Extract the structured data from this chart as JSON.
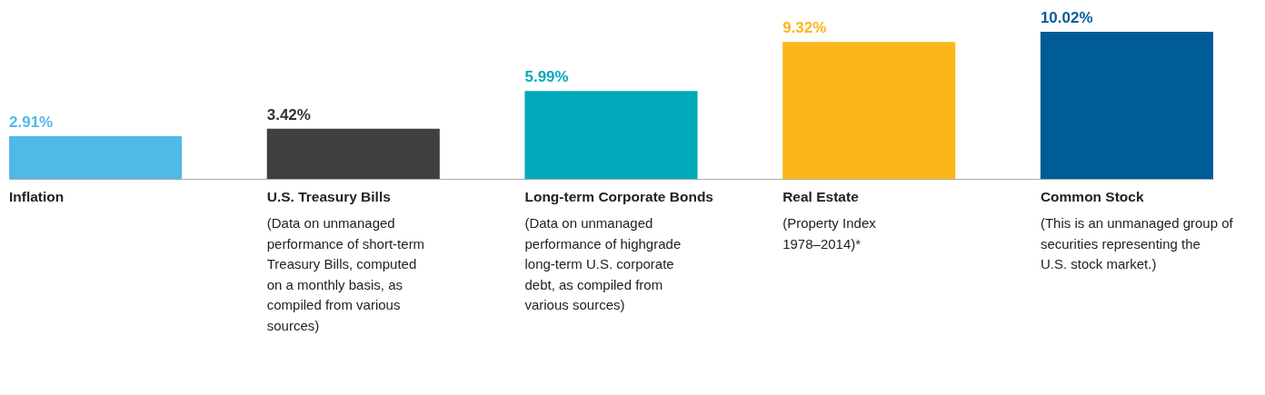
{
  "chart_data": {
    "type": "bar",
    "categories": [
      "Inflation",
      "U.S. Treasury Bills",
      "Long-term Corporate Bonds",
      "Real Estate",
      "Common Stock"
    ],
    "values": [
      2.91,
      3.42,
      5.99,
      9.32,
      10.02
    ],
    "colors": [
      "#4fb9e7",
      "#404040",
      "#00aabb",
      "#fbb61b",
      "#005c97"
    ],
    "value_labels": [
      "2.91%",
      "3.42%",
      "5.99%",
      "9.32%",
      "10.02%"
    ],
    "annotations": [
      "(Data on unmanaged\nperformance of short-term\nTreasury Bills, computed\non a monthly basis, as\ncompiled from various\nsources)",
      "(Data on unmanaged\nperformance of highgrade\nlong-term U.S. corporate\ndebt, as compiled from\nvarious sources)",
      "(Property Index\n1978–2014)*",
      "(This is an unmanaged group of\nsecurities representing the\nU.S. stock market.)"
    ]
  }
}
